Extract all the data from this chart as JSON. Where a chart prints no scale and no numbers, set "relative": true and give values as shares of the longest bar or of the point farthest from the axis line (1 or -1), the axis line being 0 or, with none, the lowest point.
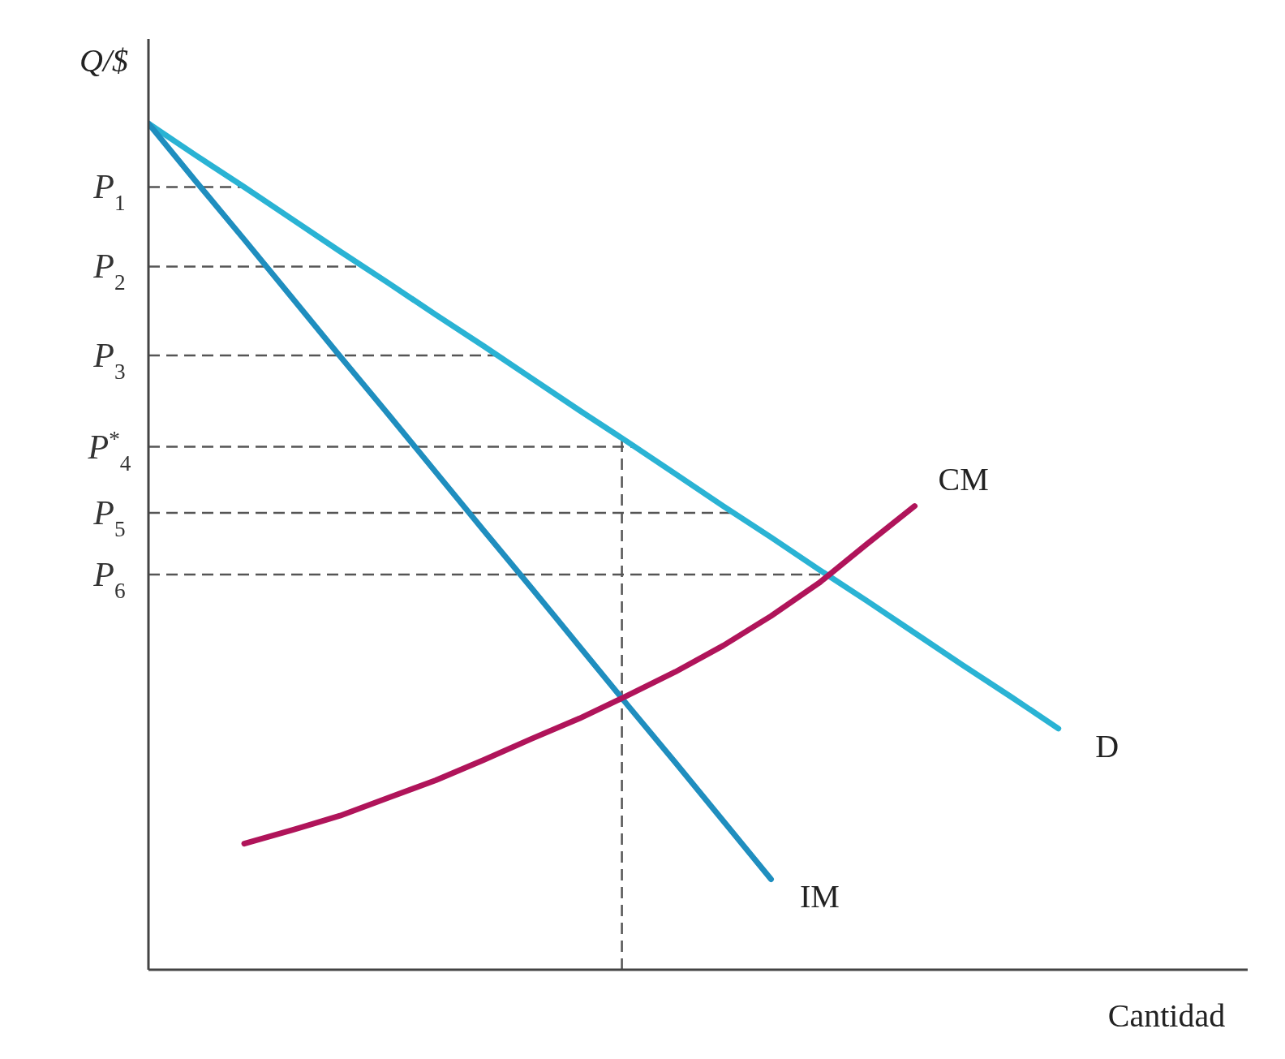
{
  "chart_data": {
    "type": "line",
    "relative": true,
    "ylabel": "Q/$",
    "xlabel": "Cantidad",
    "legend": false,
    "grid": false,
    "marker": "none",
    "line_style": "solid",
    "categories": [
      null,
      null,
      null,
      null,
      null,
      null,
      null,
      null,
      null,
      null,
      null,
      null,
      null,
      null,
      null,
      null,
      null,
      null,
      null,
      null
    ],
    "series": [
      {
        "name": "D",
        "color": "#2ab3d4",
        "values": [
          1,
          0.962,
          0.925,
          0.887,
          0.849,
          0.812,
          0.774,
          0.737,
          0.699,
          0.661,
          0.624,
          0.586,
          0.548,
          0.511,
          0.473,
          0.436,
          0.398,
          0.36,
          0.323,
          0.285
        ]
      },
      {
        "name": "IM",
        "color": "#1f8ebf",
        "values": [
          1,
          0.931,
          0.863,
          0.794,
          0.725,
          0.657,
          0.588,
          0.519,
          0.451,
          0.382,
          0.313,
          0.245,
          0.176,
          0.107,
          null,
          null,
          null,
          null,
          null,
          null
        ]
      },
      {
        "name": "CM",
        "color": "#b0145a",
        "values": [
          null,
          null,
          0.149,
          0.165,
          0.182,
          0.203,
          0.224,
          0.248,
          0.273,
          0.297,
          0.324,
          0.352,
          0.383,
          0.418,
          0.457,
          0.503,
          0.548,
          null,
          null,
          null
        ]
      }
    ],
    "ref_lines": [
      {
        "axis": "y",
        "value": 0.925,
        "label": "P$_{1}$",
        "line_style": "dashed",
        "color": "#555555"
      },
      {
        "axis": "y",
        "value": 0.831,
        "label": "P$_{2}$",
        "line_style": "dashed",
        "color": "#555555"
      },
      {
        "axis": "y",
        "value": 0.726,
        "label": "P$_{3}$",
        "line_style": "dashed",
        "color": "#555555"
      },
      {
        "axis": "y",
        "value": 0.618,
        "label": "P$^{*}$$_{4}$",
        "line_style": "dashed",
        "color": "#555555"
      },
      {
        "axis": "y",
        "value": 0.54,
        "label": "P$_{5}$",
        "line_style": "dashed",
        "color": "#555555"
      },
      {
        "axis": "y",
        "value": 0.467,
        "label": "P$_{6}$",
        "line_style": "dashed",
        "color": "#555555"
      }
    ]
  }
}
